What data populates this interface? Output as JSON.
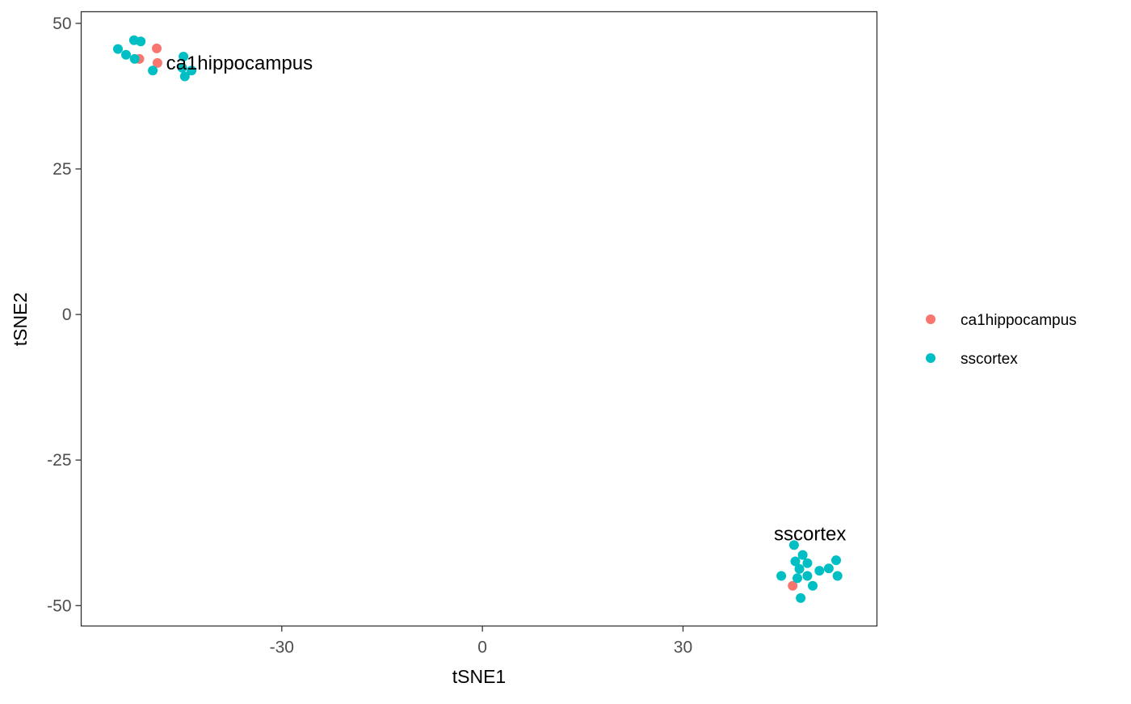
{
  "chart_data": {
    "type": "scatter",
    "title": "",
    "xlabel": "tSNE1",
    "ylabel": "tSNE2",
    "xlim": [
      -60,
      59
    ],
    "ylim": [
      -53.5,
      52
    ],
    "x_ticks": [
      -30,
      0,
      30
    ],
    "y_ticks": [
      50,
      25,
      0,
      -25,
      -50
    ],
    "x_tick_labels": [
      "-30",
      "0",
      "30"
    ],
    "y_tick_labels": [
      "50",
      "25",
      "0",
      "-25",
      "-50"
    ],
    "grid": false,
    "legend_position": "right",
    "colors": {
      "ca1hippocampus": "#F8766D",
      "sscortex": "#00BFC4"
    },
    "series": [
      {
        "name": "ca1hippocampus",
        "color": "#F8766D",
        "points": [
          {
            "x": -51.3,
            "y": 43.9
          },
          {
            "x": -48.7,
            "y": 45.7
          },
          {
            "x": -48.6,
            "y": 43.2
          },
          {
            "x": 46.4,
            "y": -46.6
          }
        ]
      },
      {
        "name": "sscortex",
        "color": "#00BFC4",
        "points": [
          {
            "x": -54.5,
            "y": 45.6
          },
          {
            "x": -53.3,
            "y": 44.6
          },
          {
            "x": -52.1,
            "y": 47.1
          },
          {
            "x": -51.1,
            "y": 46.9
          },
          {
            "x": -52.0,
            "y": 43.9
          },
          {
            "x": -49.3,
            "y": 41.9
          },
          {
            "x": -44.7,
            "y": 44.3
          },
          {
            "x": -44.9,
            "y": 42.4
          },
          {
            "x": -44.5,
            "y": 40.9
          },
          {
            "x": -43.5,
            "y": 41.9
          },
          {
            "x": 44.7,
            "y": -44.9
          },
          {
            "x": 46.6,
            "y": -39.6
          },
          {
            "x": 46.8,
            "y": -42.4
          },
          {
            "x": 47.4,
            "y": -43.7
          },
          {
            "x": 47.9,
            "y": -41.3
          },
          {
            "x": 47.1,
            "y": -45.3
          },
          {
            "x": 48.6,
            "y": -42.7
          },
          {
            "x": 48.6,
            "y": -44.9
          },
          {
            "x": 47.6,
            "y": -48.7
          },
          {
            "x": 49.4,
            "y": -46.6
          },
          {
            "x": 50.4,
            "y": -44.0
          },
          {
            "x": 51.8,
            "y": -43.6
          },
          {
            "x": 52.9,
            "y": -42.2
          },
          {
            "x": 53.1,
            "y": -44.9
          }
        ]
      }
    ],
    "annotations": [
      {
        "text": "ca1hippocampus",
        "x": -47.3,
        "y": 43.2,
        "anchor": "start"
      },
      {
        "text": "sscortex",
        "x": 49.0,
        "y": -37.7,
        "anchor": "middle"
      }
    ],
    "legend": {
      "title": "",
      "items": [
        "ca1hippocampus",
        "sscortex"
      ]
    }
  }
}
